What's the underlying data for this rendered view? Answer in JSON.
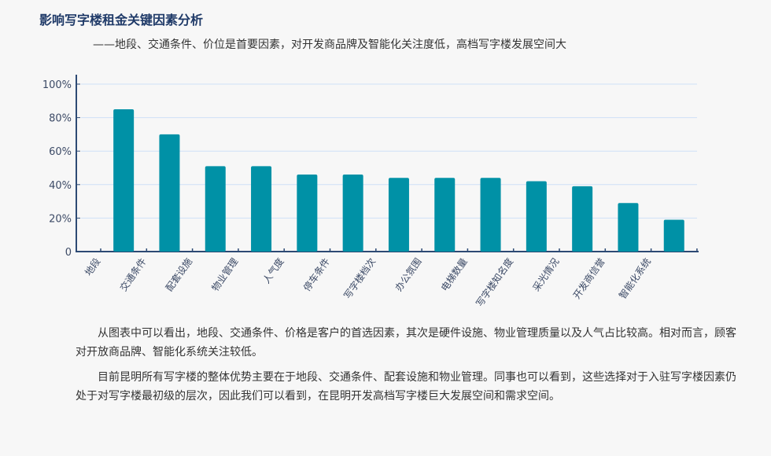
{
  "header": {
    "title": "影响写字楼租金关键因素分析",
    "subtitle": "——地段、交通条件、价位是首要因素，对开发商品牌及智能化关注度低，高档写字楼发展空间大"
  },
  "chart_data": {
    "type": "bar",
    "categories": [
      "地段",
      "交通条件",
      "配套设施",
      "物业管理",
      "人气度",
      "停车条件",
      "写字楼档次",
      "办公氛围",
      "电梯数量",
      "写字楼知名度",
      "采光情况",
      "开发商信誉",
      "智能化系统"
    ],
    "values": [
      85,
      70,
      51,
      51,
      46,
      46,
      44,
      44,
      44,
      42,
      39,
      29,
      19
    ],
    "ylim": [
      0,
      100
    ],
    "yticks": [
      "0",
      "20%",
      "40%",
      "60%",
      "80%",
      "100%"
    ],
    "grid": true,
    "colors": {
      "bar": "#0091a6",
      "axis": "#2d4a74",
      "grid": "#cfe0f7"
    }
  },
  "body": {
    "paragraphs": [
      "从图表中可以看出，地段、交通条件、价格是客户的首选因素，其次是硬件设施、物业管理质量以及人气占比较高。相对而言，顾客对开放商品牌、智能化系统关注较低。",
      "目前昆明所有写字楼的整体优势主要在于地段、交通条件、配套设施和物业管理。同事也可以看到，这些选择对于入驻写字楼因素仍处于对写字楼最初级的层次，因此我们可以看到，在昆明开发高档写字楼巨大发展空间和需求空间。"
    ]
  }
}
